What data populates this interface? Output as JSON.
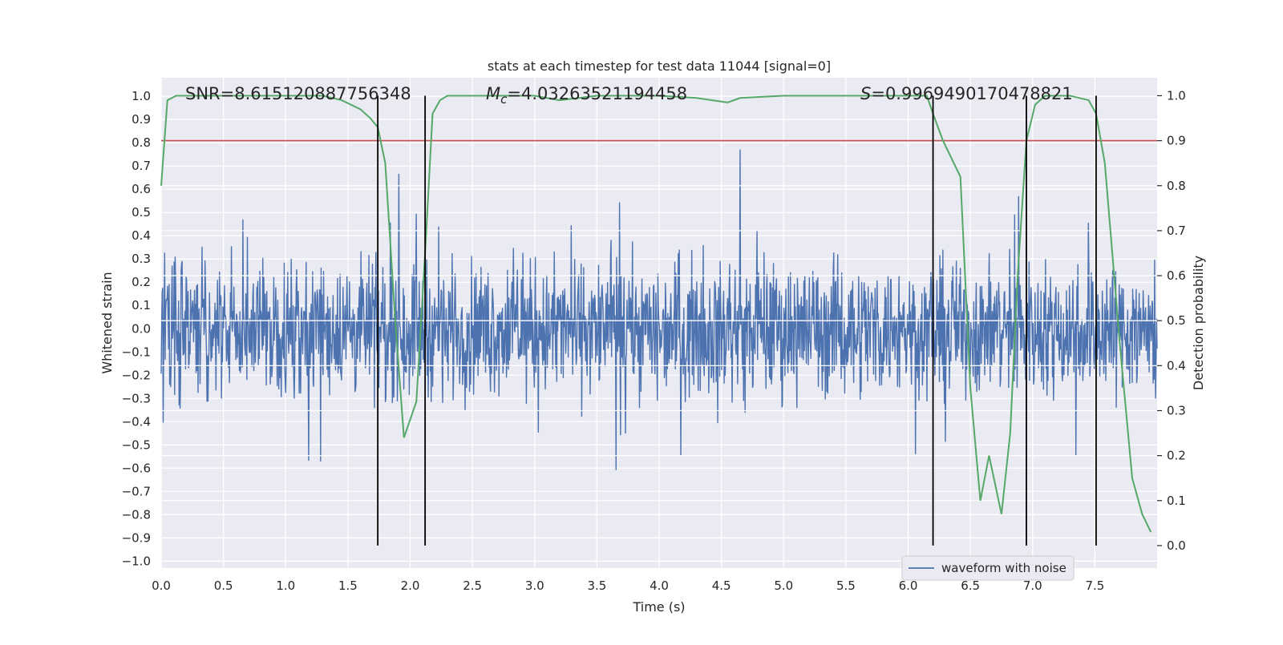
{
  "chart_data": {
    "type": "line",
    "title": "stats at each timestep for test data 11044 [signal=0]",
    "xlabel": "Time (s)",
    "ylabel_left": "Whitened strain",
    "ylabel_right": "Detection probability",
    "xlim": [
      0.0,
      8.0
    ],
    "ylim_left": [
      -1.03,
      1.08
    ],
    "ylim_right": [
      -0.05,
      1.04
    ],
    "x_ticks": [
      0.0,
      0.5,
      1.0,
      1.5,
      2.0,
      2.5,
      3.0,
      3.5,
      4.0,
      4.5,
      5.0,
      5.5,
      6.0,
      6.5,
      7.0,
      7.5
    ],
    "x_tick_labels": [
      "0.0",
      "0.5",
      "1.0",
      "1.5",
      "2.0",
      "2.5",
      "3.0",
      "3.5",
      "4.0",
      "4.5",
      "5.0",
      "5.5",
      "6.0",
      "6.5",
      "7.0",
      "7.5"
    ],
    "y_left_ticks": [
      -1.0,
      -0.9,
      -0.8,
      -0.7,
      -0.6,
      -0.5,
      -0.4,
      -0.3,
      -0.2,
      -0.1,
      0.0,
      0.1,
      0.2,
      0.3,
      0.4,
      0.5,
      0.6,
      0.7,
      0.8,
      0.9,
      1.0
    ],
    "y_left_tick_labels": [
      "−1.0",
      "−0.9",
      "−0.8",
      "−0.7",
      "−0.6",
      "−0.5",
      "−0.4",
      "−0.3",
      "−0.2",
      "−0.1",
      "0.0",
      "0.1",
      "0.2",
      "0.3",
      "0.4",
      "0.5",
      "0.6",
      "0.7",
      "0.8",
      "0.9",
      "1.0"
    ],
    "y_right_ticks": [
      0.0,
      0.1,
      0.2,
      0.3,
      0.4,
      0.5,
      0.6,
      0.7,
      0.8,
      0.9,
      1.0
    ],
    "y_right_tick_labels": [
      "0.0",
      "0.1",
      "0.2",
      "0.3",
      "0.4",
      "0.5",
      "0.6",
      "0.7",
      "0.8",
      "0.9",
      "1.0"
    ],
    "annotations": {
      "snr": "SNR=8.615120887756348",
      "mc_symbol": "M",
      "mc_subscript": "c",
      "mc_value": "=4.03263521194458",
      "s_symbol": "S",
      "s_value": "=0.9969490170478821"
    },
    "threshold": {
      "value": 0.9,
      "axis": "right",
      "color": "#c44e52"
    },
    "vertical_markers_x": [
      1.74,
      2.12,
      6.2,
      6.95,
      7.51
    ],
    "waveform": {
      "name": "waveform with noise",
      "color": "#4c72b0",
      "duration_s": 8.0,
      "samples": 2000,
      "core_amplitude": 0.34,
      "max_value": 1.0,
      "min_value": -0.93
    },
    "detection_probability": {
      "color": "#55a868",
      "x": [
        0.0,
        0.05,
        0.12,
        0.2,
        0.5,
        1.0,
        1.3,
        1.45,
        1.6,
        1.68,
        1.74,
        1.8,
        1.88,
        1.95,
        2.05,
        2.12,
        2.18,
        2.24,
        2.3,
        2.5,
        3.0,
        3.2,
        3.5,
        4.0,
        4.3,
        4.55,
        4.65,
        5.0,
        5.5,
        6.0,
        6.15,
        6.2,
        6.28,
        6.42,
        6.5,
        6.58,
        6.65,
        6.75,
        6.82,
        6.88,
        6.95,
        7.02,
        7.1,
        7.2,
        7.3,
        7.45,
        7.51,
        7.58,
        7.7,
        7.8,
        7.88,
        7.95
      ],
      "y": [
        0.8,
        0.99,
        1.0,
        1.0,
        1.0,
        1.0,
        1.0,
        0.99,
        0.97,
        0.95,
        0.93,
        0.85,
        0.5,
        0.24,
        0.32,
        0.65,
        0.96,
        0.99,
        1.0,
        1.0,
        1.0,
        0.99,
        1.0,
        1.0,
        0.995,
        0.985,
        0.995,
        1.0,
        1.0,
        1.0,
        1.0,
        0.96,
        0.9,
        0.82,
        0.35,
        0.1,
        0.2,
        0.07,
        0.25,
        0.6,
        0.9,
        0.98,
        1.0,
        1.0,
        1.0,
        0.99,
        0.96,
        0.85,
        0.45,
        0.15,
        0.07,
        0.03
      ]
    },
    "legend": {
      "label": "waveform with noise",
      "location": "lower-right"
    },
    "grid": true
  }
}
